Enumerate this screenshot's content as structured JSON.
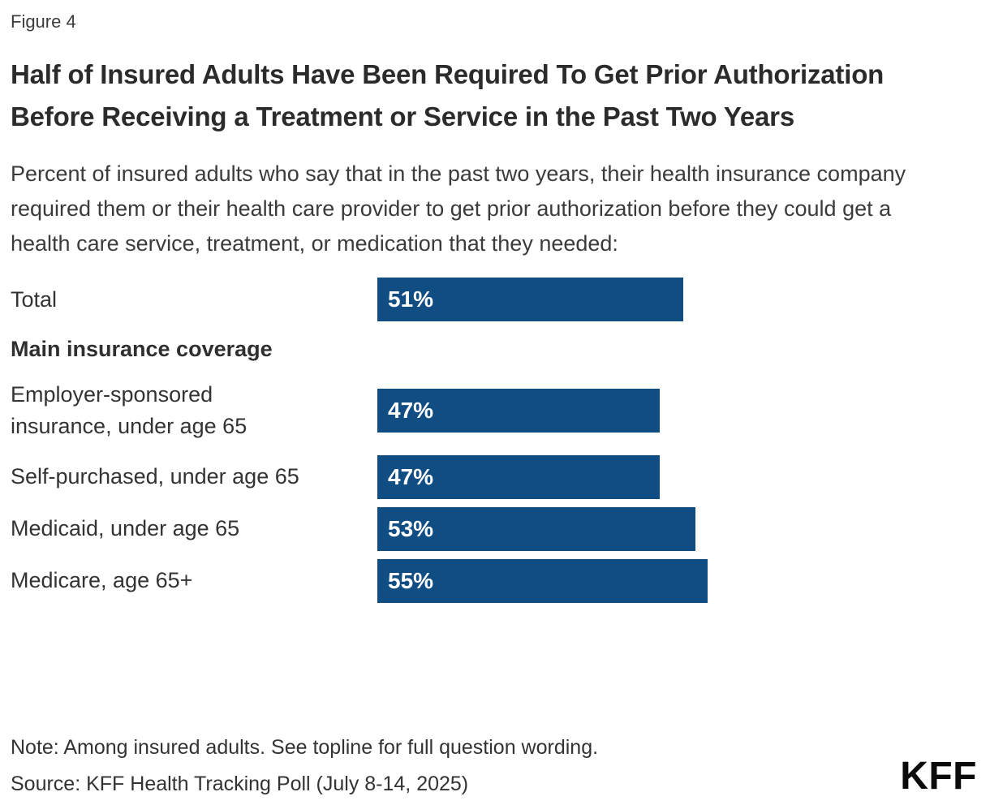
{
  "figure_label": "Figure 4",
  "title": "Half of Insured Adults Have Been Required To Get Prior Authorization Before Receiving a Treatment or Service in the Past Two Years",
  "subtitle": "Percent of insured adults who say that in the past two years, their health insurance company required them or their health care provider to get prior authorization before they could get a health care service, treatment, or medication that they needed:",
  "chart_data": {
    "type": "bar",
    "orientation": "horizontal",
    "title": "Half of Insured Adults Have Been Required To Get Prior Authorization Before Receiving a Treatment or Service in the Past Two Years",
    "group_header": "Main insurance coverage",
    "categories": [
      "Total",
      "Employer-sponsored insurance, under age 65",
      "Self-purchased, under age 65",
      "Medicaid, under age 65",
      "Medicare, age 65+"
    ],
    "values": [
      51,
      47,
      47,
      53,
      55
    ],
    "value_labels": [
      "51%",
      "47%",
      "47%",
      "53%",
      "55%"
    ],
    "unit": "percent",
    "bar_color": "#104d82",
    "value_label_color": "#ffffff",
    "grid": false,
    "legend": "none",
    "axis_labels": "none"
  },
  "note": "Note: Among insured adults. See topline for full question wording.",
  "source": "Source: KFF Health Tracking Poll (July 8-14, 2025)",
  "logo_text": "KFF",
  "colors": {
    "background": "#ffffff",
    "bar": "#104d82",
    "title_text": "#2b2b2b",
    "body_text": "#333333"
  }
}
